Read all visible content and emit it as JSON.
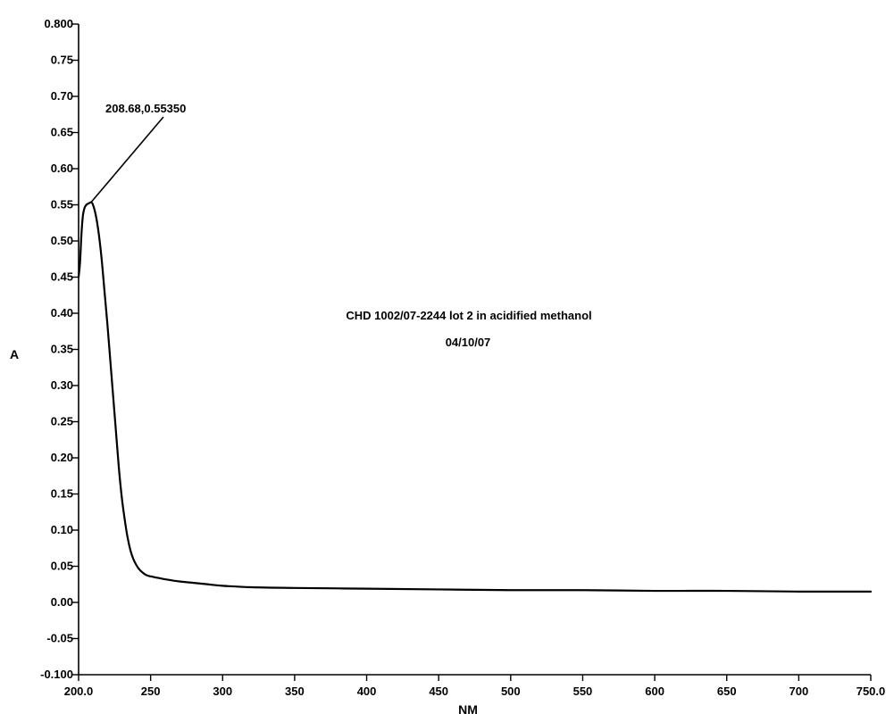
{
  "chart_data": {
    "type": "line",
    "title": "CHD 1002/07-2244 lot 2 in  acidified methanol",
    "subtitle": "04/10/07",
    "xlabel": "NM",
    "ylabel": "A",
    "xlim": [
      200.0,
      750.0
    ],
    "ylim": [
      -0.1,
      0.8
    ],
    "x_ticks": [
      200.0,
      250,
      300,
      350,
      400,
      450,
      500,
      550,
      600,
      650,
      700,
      750.0
    ],
    "x_tick_labels": [
      "200.0",
      "250",
      "300",
      "350",
      "400",
      "450",
      "500",
      "550",
      "600",
      "650",
      "700",
      "750.0"
    ],
    "y_ticks": [
      -0.1,
      -0.05,
      0.0,
      0.05,
      0.1,
      0.15,
      0.2,
      0.25,
      0.3,
      0.35,
      0.4,
      0.45,
      0.5,
      0.55,
      0.6,
      0.65,
      0.7,
      0.75,
      0.8
    ],
    "y_tick_labels": [
      "-0.100",
      "-0.05",
      "0.00",
      "0.05",
      "0.10",
      "0.15",
      "0.20",
      "0.25",
      "0.30",
      "0.35",
      "0.40",
      "0.45",
      "0.50",
      "0.55",
      "0.60",
      "0.65",
      "0.70",
      "0.75",
      "0.800"
    ],
    "grid": false,
    "series": [
      {
        "x": [
          200,
          201,
          202,
          203,
          204,
          205,
          206,
          207,
          208.68,
          210,
          212,
          214,
          216,
          218,
          220,
          222,
          224,
          226,
          228,
          230,
          232,
          234,
          236,
          238,
          240,
          242,
          244,
          246,
          248,
          250,
          255,
          260,
          270,
          280,
          290,
          300,
          320,
          350,
          400,
          450,
          500,
          550,
          600,
          650,
          700,
          750
        ],
        "y": [
          0.45,
          0.47,
          0.51,
          0.535,
          0.545,
          0.549,
          0.551,
          0.552,
          0.5535,
          0.55,
          0.535,
          0.51,
          0.475,
          0.43,
          0.385,
          0.335,
          0.285,
          0.235,
          0.185,
          0.145,
          0.115,
          0.09,
          0.072,
          0.06,
          0.052,
          0.046,
          0.042,
          0.039,
          0.037,
          0.036,
          0.034,
          0.032,
          0.029,
          0.027,
          0.025,
          0.023,
          0.021,
          0.02,
          0.019,
          0.018,
          0.017,
          0.017,
          0.016,
          0.016,
          0.015,
          0.015
        ]
      }
    ],
    "annotations": [
      {
        "text": "208.68,0.55350",
        "x": 208.68,
        "y": 0.5535
      }
    ]
  }
}
